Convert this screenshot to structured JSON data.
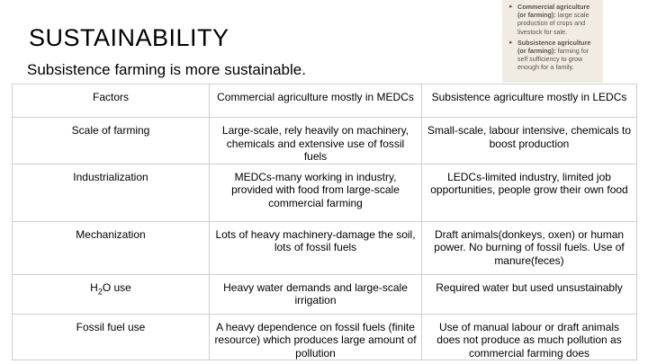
{
  "title": "SUSTAINABILITY",
  "subtitle": "Subsistence farming is more sustainable.",
  "note": [
    {
      "bullet": "▸",
      "term": "Commercial agriculture (or farming):",
      "text": "large scale production of crops and livestock for sale."
    },
    {
      "bullet": "▸",
      "term": "Subsistence agriculture (or farming):",
      "text": "farming for self sufficiency to grow enough for a family."
    }
  ],
  "table": {
    "headers": [
      "Factors",
      "Commercial agriculture mostly in MEDCs",
      "Subsistence agriculture mostly in LEDCs"
    ],
    "rows": [
      {
        "factor": "Scale of farming",
        "commercial": "Large-scale, rely heavily on machinery, chemicals and extensive use of fossil fuels",
        "subsistence": "Small-scale, labour intensive, chemicals to boost production"
      },
      {
        "factor": "Industrialization",
        "commercial": "MEDCs-many working in industry, provided with food from large-scale commercial farming",
        "subsistence": "LEDCs-limited industry, limited job opportunities, people grow their own food"
      },
      {
        "factor": "Mechanization",
        "commercial": "Lots of heavy machinery-damage the soil, lots of fossil fuels",
        "subsistence": "Draft animals(donkeys, oxen) or human power. No burning of fossil fuels. Use of manure(feces)"
      },
      {
        "factor_pre": "H",
        "factor_sub": "2",
        "factor_post": "O use",
        "commercial": "Heavy water demands and large-scale irrigation",
        "subsistence": "Required water but used unsustainably"
      },
      {
        "factor": "Fossil fuel use",
        "commercial": "A heavy dependence on fossil fuels (finite resource) which produces large amount of pollution",
        "subsistence": "Use of manual labour or draft animals does not produce as much pollution as commercial farming does"
      }
    ]
  }
}
